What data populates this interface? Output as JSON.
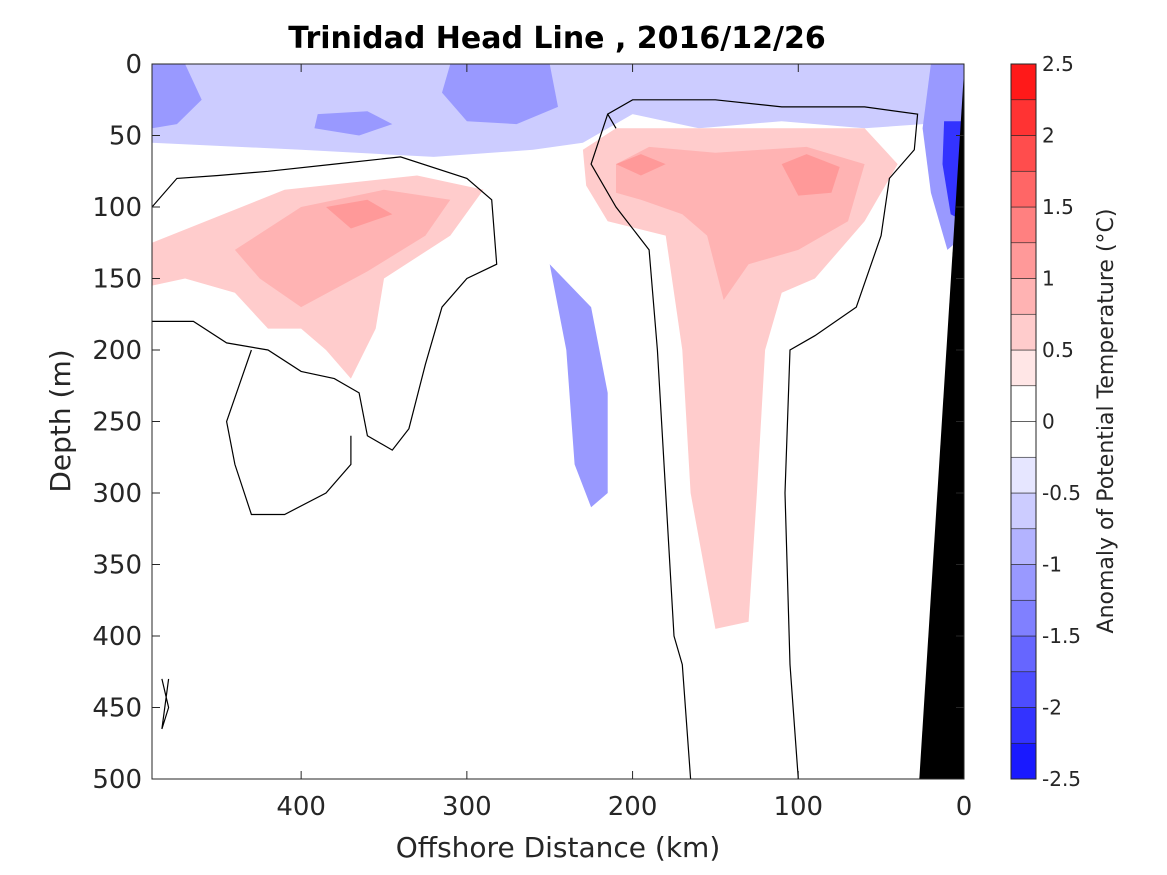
{
  "chart_data": {
    "type": "heatmap",
    "title": "Trinidad Head Line , 2016/12/26",
    "xlabel": "Offshore Distance (km)",
    "ylabel": "Depth (m)",
    "xlim": [
      490,
      0
    ],
    "ylim": [
      0,
      500
    ],
    "x_reversed": true,
    "y_reversed": true,
    "x_ticks": [
      "400",
      "300",
      "200",
      "100",
      "0"
    ],
    "x_tick_values": [
      400,
      300,
      200,
      100,
      0
    ],
    "y_ticks": [
      "0",
      "50",
      "100",
      "150",
      "200",
      "250",
      "300",
      "350",
      "400",
      "450",
      "500"
    ],
    "y_tick_values": [
      0,
      50,
      100,
      150,
      200,
      250,
      300,
      350,
      400,
      450,
      500
    ],
    "colorbar": {
      "label": "Anomaly of Potential Temperature (°C)",
      "range": [
        -2.5,
        2.5
      ],
      "step": 0.25,
      "tick_labels": [
        "2.5",
        "2",
        "1.5",
        "1",
        "0.5",
        "0",
        "-0.5",
        "-1",
        "-1.5",
        "-2",
        "-2.5"
      ],
      "tick_values": [
        2.5,
        2,
        1.5,
        1,
        0.5,
        0,
        -0.5,
        -1,
        -1.5,
        -2,
        -2.5
      ]
    },
    "contour_level": 0,
    "colors": {
      "pos_light": "#ffe0e0",
      "pos_1": "#ffc4c4",
      "pos_2": "#ffa8a8",
      "neg_light": "#e0e0ff",
      "neg_1": "#c4c4ff",
      "neg_2": "#a8a8ff",
      "neg_3": "#8c8cff",
      "neg_4": "#7070ff",
      "bottom": "#000000"
    },
    "regions": [
      {
        "name": "near-surface cool band",
        "level": -0.5,
        "points": [
          [
            490,
            0
          ],
          [
            0,
            0
          ],
          [
            0,
            40
          ],
          [
            60,
            45
          ],
          [
            110,
            40
          ],
          [
            160,
            45
          ],
          [
            200,
            35
          ],
          [
            230,
            55
          ],
          [
            260,
            60
          ],
          [
            320,
            65
          ],
          [
            400,
            60
          ],
          [
            490,
            55
          ]
        ]
      },
      {
        "name": "surface cool core west",
        "level": -1,
        "points": [
          [
            490,
            0
          ],
          [
            470,
            0
          ],
          [
            460,
            25
          ],
          [
            475,
            42
          ],
          [
            490,
            45
          ]
        ]
      },
      {
        "name": "surface cool core mid",
        "level": -1,
        "points": [
          [
            310,
            0
          ],
          [
            250,
            0
          ],
          [
            245,
            30
          ],
          [
            270,
            42
          ],
          [
            300,
            40
          ],
          [
            315,
            20
          ]
        ]
      },
      {
        "name": "surface cool patch",
        "level": -1,
        "points": [
          [
            390,
            35
          ],
          [
            360,
            33
          ],
          [
            345,
            42
          ],
          [
            365,
            50
          ],
          [
            392,
            45
          ]
        ]
      },
      {
        "name": "offshore warm core",
        "level": 0.5,
        "points": [
          [
            490,
            125
          ],
          [
            410,
            88
          ],
          [
            330,
            78
          ],
          [
            290,
            88
          ],
          [
            310,
            120
          ],
          [
            350,
            150
          ],
          [
            355,
            185
          ],
          [
            370,
            220
          ],
          [
            385,
            200
          ],
          [
            400,
            185
          ],
          [
            420,
            185
          ],
          [
            440,
            160
          ],
          [
            470,
            150
          ],
          [
            490,
            155
          ]
        ]
      },
      {
        "name": "offshore warm inner",
        "level": 0.75,
        "points": [
          [
            440,
            130
          ],
          [
            400,
            100
          ],
          [
            350,
            88
          ],
          [
            310,
            95
          ],
          [
            325,
            120
          ],
          [
            360,
            145
          ],
          [
            400,
            170
          ],
          [
            425,
            150
          ]
        ]
      },
      {
        "name": "offshore warm spot",
        "level": 1,
        "points": [
          [
            385,
            100
          ],
          [
            360,
            95
          ],
          [
            345,
            105
          ],
          [
            370,
            115
          ]
        ]
      },
      {
        "name": "nearshore warm tongue",
        "level": 0.5,
        "points": [
          [
            230,
            60
          ],
          [
            210,
            45
          ],
          [
            150,
            45
          ],
          [
            60,
            45
          ],
          [
            40,
            70
          ],
          [
            60,
            110
          ],
          [
            90,
            150
          ],
          [
            110,
            160
          ],
          [
            120,
            200
          ],
          [
            125,
            300
          ],
          [
            130,
            390
          ],
          [
            150,
            395
          ],
          [
            165,
            300
          ],
          [
            170,
            200
          ],
          [
            180,
            120
          ],
          [
            215,
            110
          ],
          [
            228,
            85
          ]
        ]
      },
      {
        "name": "nearshore warm inner",
        "level": 0.75,
        "points": [
          [
            210,
            70
          ],
          [
            190,
            58
          ],
          [
            150,
            62
          ],
          [
            95,
            58
          ],
          [
            60,
            70
          ],
          [
            70,
            110
          ],
          [
            100,
            130
          ],
          [
            130,
            140
          ],
          [
            145,
            165
          ],
          [
            155,
            120
          ],
          [
            170,
            105
          ],
          [
            195,
            95
          ],
          [
            210,
            90
          ]
        ]
      },
      {
        "name": "nearshore warm spot a",
        "level": 1,
        "points": [
          [
            210,
            70
          ],
          [
            195,
            63
          ],
          [
            180,
            70
          ],
          [
            195,
            78
          ]
        ]
      },
      {
        "name": "nearshore warm spot b",
        "level": 1,
        "points": [
          [
            110,
            70
          ],
          [
            95,
            63
          ],
          [
            75,
            72
          ],
          [
            80,
            90
          ],
          [
            100,
            92
          ]
        ]
      },
      {
        "name": "cool filament",
        "level": -1,
        "points": [
          [
            250,
            140
          ],
          [
            240,
            200
          ],
          [
            235,
            280
          ],
          [
            225,
            310
          ],
          [
            215,
            300
          ],
          [
            215,
            230
          ],
          [
            225,
            170
          ]
        ]
      },
      {
        "name": "coastal cool gradient 1",
        "level": -1,
        "points": [
          [
            20,
            0
          ],
          [
            0,
            0
          ],
          [
            0,
            120
          ],
          [
            10,
            130
          ],
          [
            20,
            90
          ],
          [
            25,
            45
          ]
        ]
      },
      {
        "name": "coastal cool gradient 2",
        "level": -2,
        "points": [
          [
            12,
            40
          ],
          [
            0,
            40
          ],
          [
            0,
            110
          ],
          [
            8,
            105
          ],
          [
            13,
            70
          ]
        ]
      },
      {
        "name": "seafloor",
        "level": "bottom",
        "points": [
          [
            0,
            5
          ],
          [
            0,
            500
          ],
          [
            27,
            500
          ]
        ]
      }
    ],
    "zero_contours": [
      [
        [
          490,
          100
        ],
        [
          475,
          80
        ],
        [
          450,
          78
        ],
        [
          420,
          75
        ],
        [
          380,
          70
        ],
        [
          340,
          65
        ],
        [
          300,
          80
        ],
        [
          285,
          95
        ],
        [
          282,
          140
        ],
        [
          300,
          150
        ],
        [
          315,
          170
        ],
        [
          325,
          210
        ],
        [
          335,
          255
        ],
        [
          345,
          270
        ],
        [
          360,
          260
        ],
        [
          365,
          230
        ],
        [
          380,
          220
        ],
        [
          400,
          215
        ],
        [
          420,
          200
        ],
        [
          445,
          195
        ],
        [
          465,
          180
        ],
        [
          490,
          180
        ]
      ],
      [
        [
          370,
          260
        ],
        [
          370,
          280
        ],
        [
          385,
          300
        ],
        [
          410,
          315
        ],
        [
          430,
          315
        ],
        [
          440,
          280
        ],
        [
          445,
          250
        ],
        [
          430,
          200
        ]
      ],
      [
        [
          210,
          45
        ],
        [
          215,
          35
        ],
        [
          200,
          25
        ],
        [
          150,
          25
        ],
        [
          110,
          30
        ],
        [
          60,
          30
        ],
        [
          28,
          35
        ],
        [
          30,
          60
        ],
        [
          45,
          80
        ],
        [
          50,
          120
        ],
        [
          65,
          170
        ],
        [
          90,
          190
        ],
        [
          105,
          200
        ],
        [
          108,
          300
        ],
        [
          105,
          420
        ],
        [
          100,
          500
        ]
      ],
      [
        [
          215,
          35
        ],
        [
          225,
          70
        ],
        [
          210,
          100
        ],
        [
          190,
          130
        ],
        [
          185,
          200
        ],
        [
          180,
          300
        ],
        [
          175,
          400
        ],
        [
          170,
          420
        ],
        [
          165,
          500
        ]
      ],
      [
        [
          484,
          430
        ],
        [
          480,
          450
        ],
        [
          484,
          465
        ],
        [
          480,
          430
        ]
      ]
    ]
  }
}
